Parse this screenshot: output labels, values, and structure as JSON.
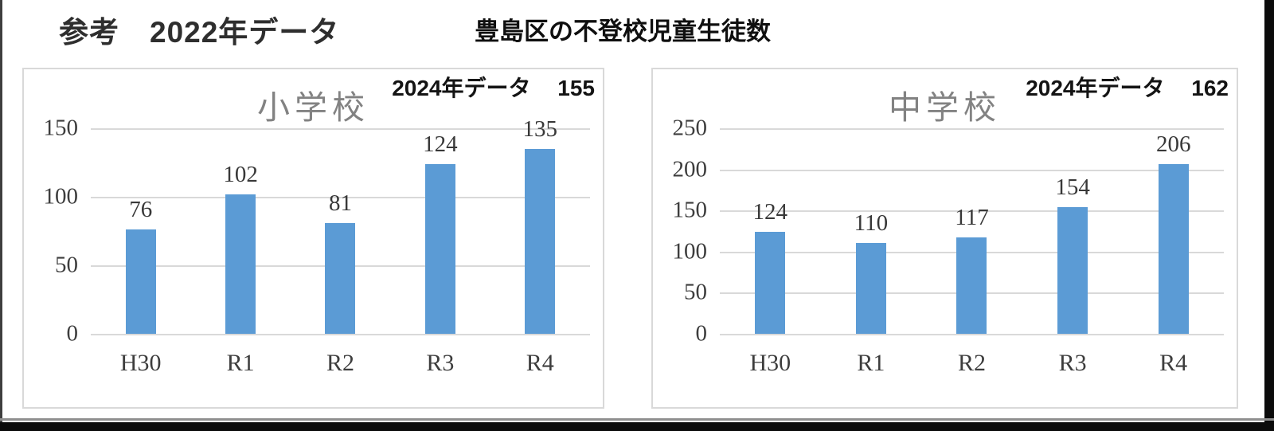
{
  "header": {
    "left_title": "参考　2022年データ",
    "center_title": "豊島区の不登校児童生徒数"
  },
  "colors": {
    "bar_blue": "#5B9BD5",
    "title_gray": "#828282",
    "gridline": "#d9d9d9"
  },
  "chart_data": [
    {
      "type": "bar",
      "title": "小学校",
      "categories": [
        "H30",
        "R1",
        "R2",
        "R3",
        "R4"
      ],
      "values": [
        76,
        102,
        81,
        124,
        135
      ],
      "ylim": [
        0,
        150
      ],
      "yticks": [
        0,
        50,
        100,
        150
      ],
      "grid": true,
      "legend": "none",
      "bar_color": "#5B9BD5",
      "annotation_label": "2024年データ",
      "annotation_value": "155"
    },
    {
      "type": "bar",
      "title": "中学校",
      "categories": [
        "H30",
        "R1",
        "R2",
        "R3",
        "R4"
      ],
      "values": [
        124,
        110,
        117,
        154,
        206
      ],
      "ylim": [
        0,
        250
      ],
      "yticks": [
        0,
        50,
        100,
        150,
        200,
        250
      ],
      "grid": true,
      "legend": "none",
      "bar_color": "#5B9BD5",
      "annotation_label": "2024年データ",
      "annotation_value": "162"
    }
  ]
}
